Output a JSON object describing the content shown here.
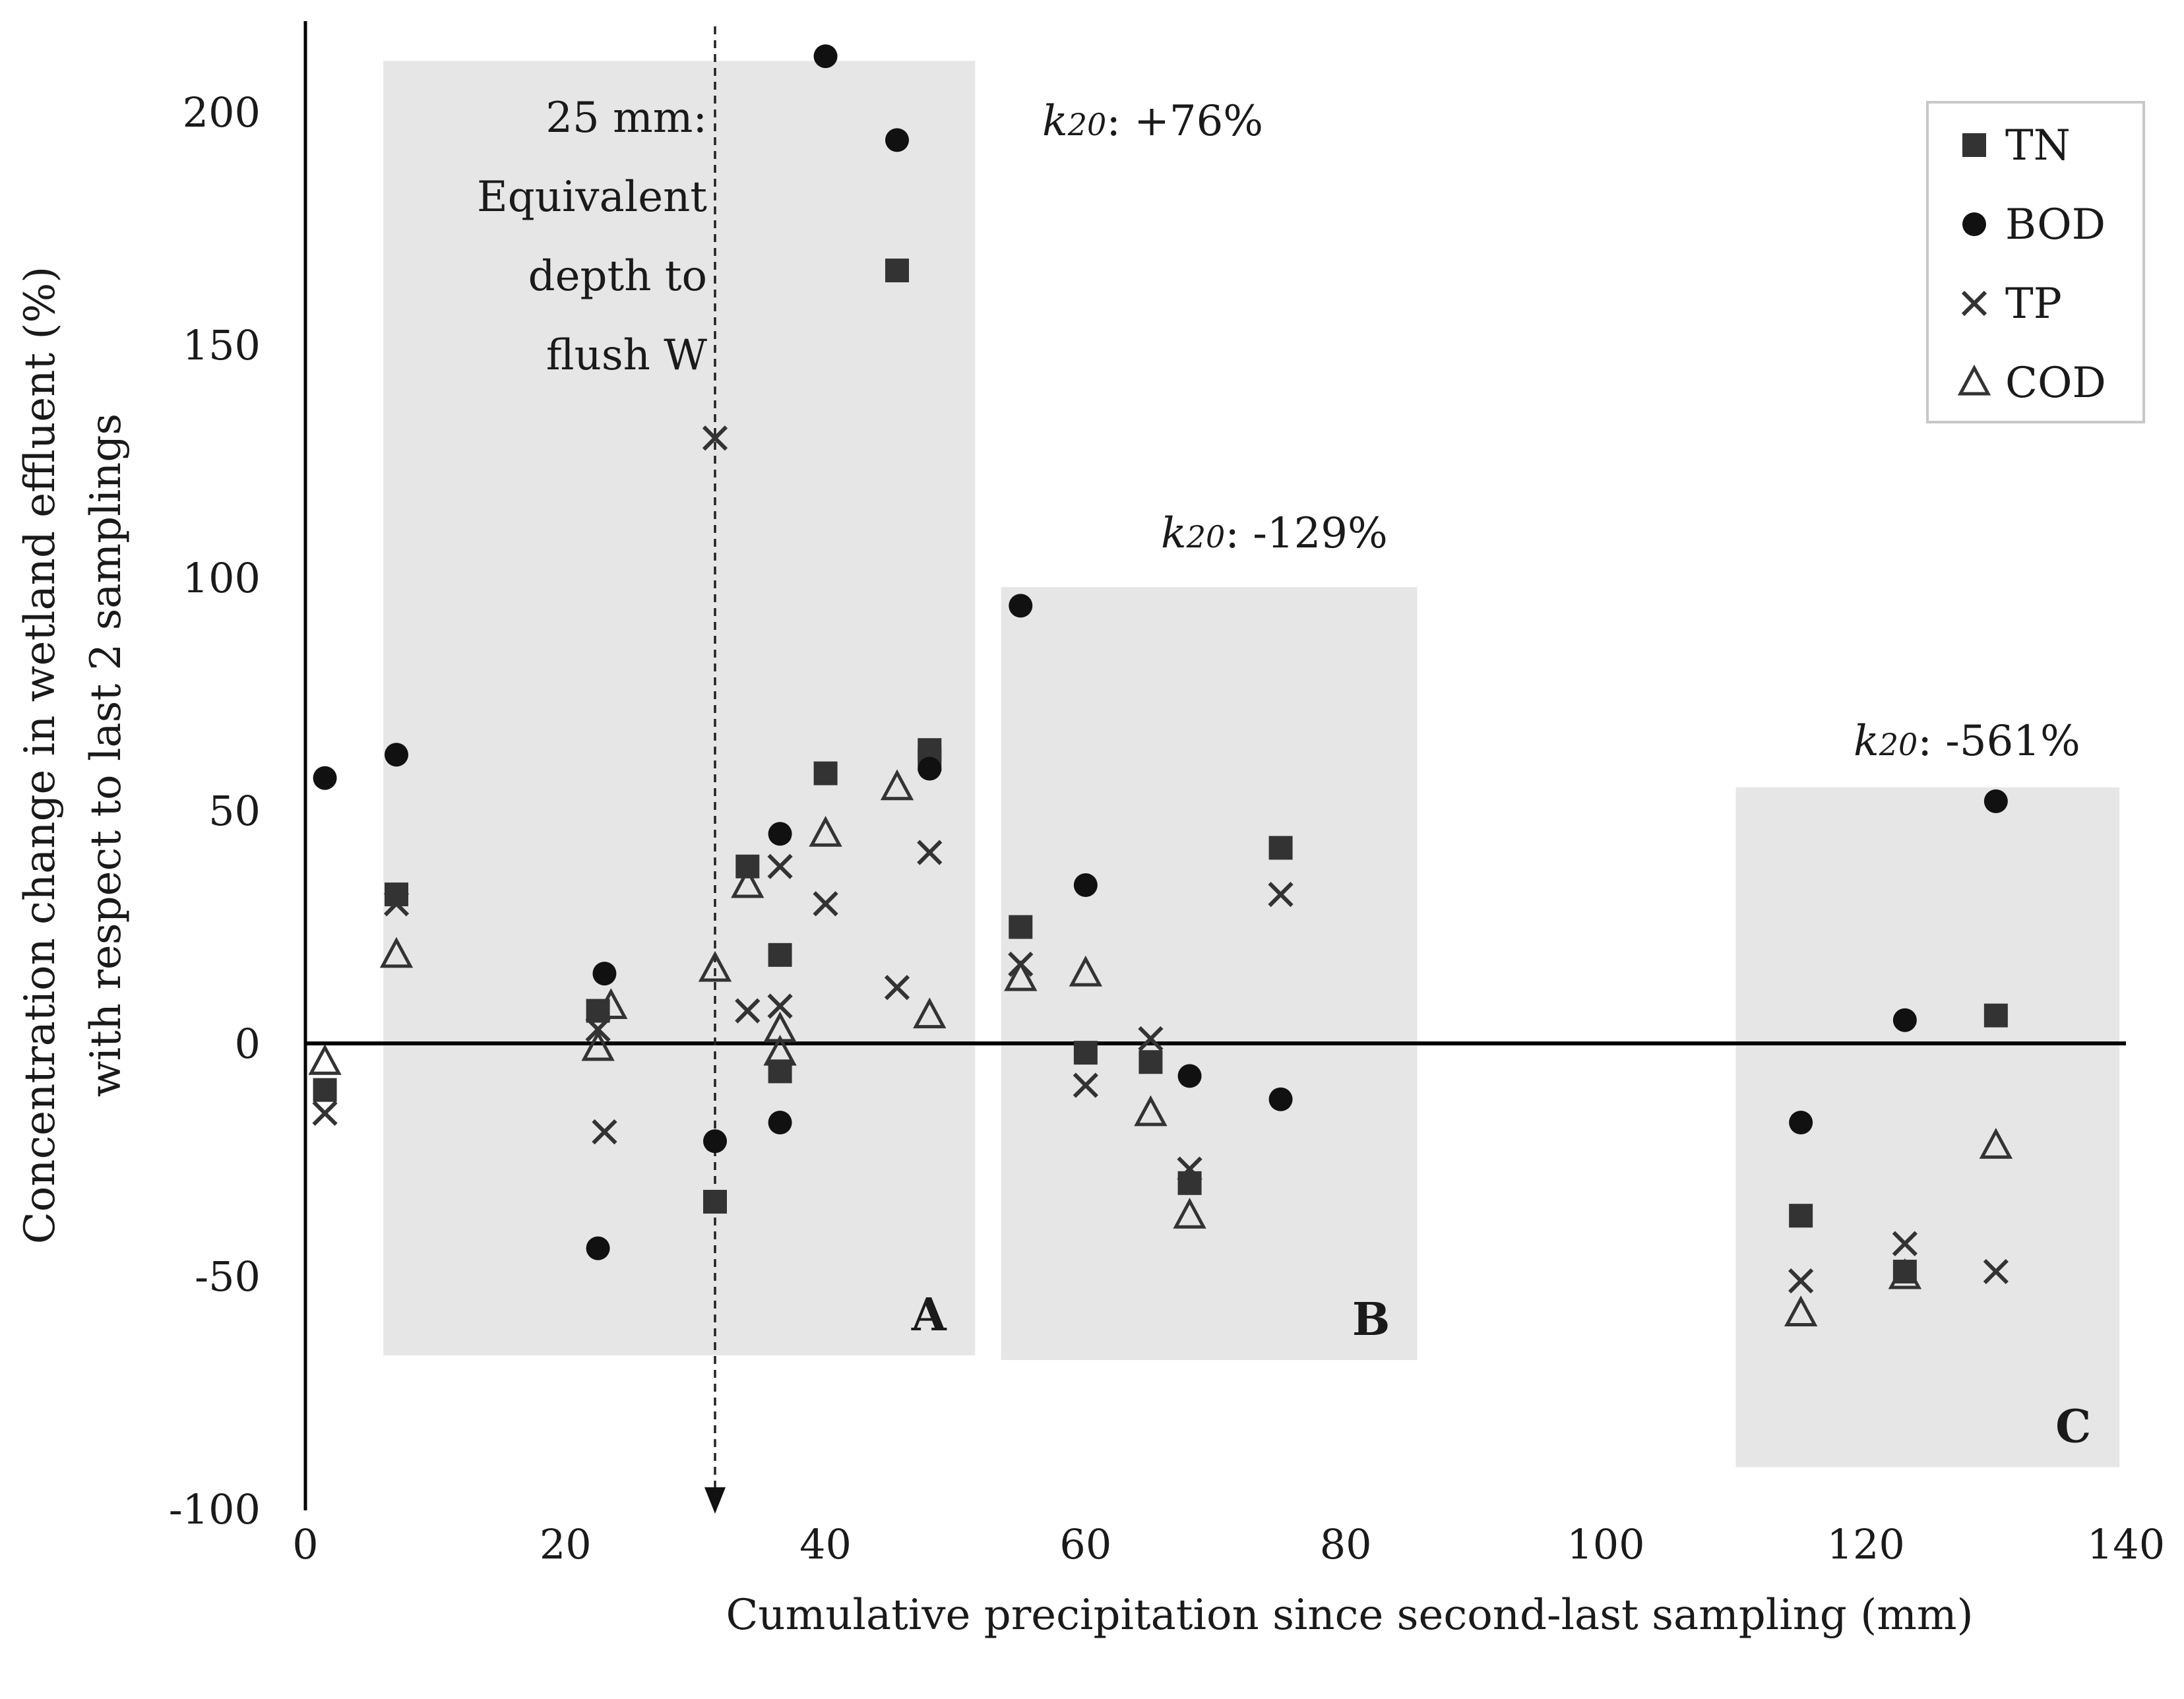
{
  "chart_data": {
    "type": "scatter",
    "title": "",
    "xlabel": "Cumulative precipitation since second-last sampling (mm)",
    "ylabel": [
      "Concentration change in wetland effluent (%)",
      "with respect to last 2 samplings"
    ],
    "xlim": [
      0,
      140
    ],
    "ylim": [
      -100,
      220
    ],
    "x_ticks": [
      "0",
      "20",
      "40",
      "60",
      "80",
      "100",
      "120",
      "140"
    ],
    "y_ticks": [
      "-100",
      "-50",
      "0",
      "50",
      "100",
      "150",
      "200"
    ],
    "x_tick_values": [
      0,
      20,
      40,
      60,
      80,
      100,
      120,
      140
    ],
    "y_tick_values": [
      -100,
      -50,
      0,
      50,
      100,
      150,
      200
    ],
    "legend": {
      "position": "top-right",
      "entries": [
        "TN",
        "BOD",
        "TP",
        "COD"
      ]
    },
    "regions": [
      {
        "label": "A",
        "x_range": [
          6,
          51.5
        ],
        "y_range": [
          -67,
          211
        ],
        "k20_prefix": "k",
        "k20_sub": "20",
        "k20_value": ": +76%"
      },
      {
        "label": "B",
        "x_range": [
          53.5,
          85.5
        ],
        "y_range": [
          -68,
          98
        ],
        "k20_prefix": "k",
        "k20_sub": "20",
        "k20_value": ": -129%"
      },
      {
        "label": "C",
        "x_range": [
          110,
          139.5
        ],
        "y_range": [
          -91,
          55
        ],
        "k20_prefix": "k",
        "k20_sub": "20",
        "k20_value": ": -561%"
      }
    ],
    "reference_line": {
      "x": 31.5,
      "y_range": [
        -100,
        219
      ],
      "label": [
        "25 mm:",
        "Equivalent",
        "depth to",
        "flush W"
      ]
    },
    "series": [
      {
        "name": "TN",
        "marker": "square",
        "points": [
          [
            1.5,
            -10
          ],
          [
            7,
            32
          ],
          [
            22.5,
            7
          ],
          [
            31.5,
            -34
          ],
          [
            34,
            38
          ],
          [
            36.5,
            19
          ],
          [
            36.5,
            -6
          ],
          [
            40,
            58
          ],
          [
            45.5,
            166
          ],
          [
            48,
            63
          ],
          [
            48,
            61
          ],
          [
            55,
            25
          ],
          [
            60,
            -2
          ],
          [
            65,
            -4
          ],
          [
            68,
            -30
          ],
          [
            75,
            42
          ],
          [
            115,
            -37
          ],
          [
            123,
            -49
          ],
          [
            130,
            6
          ]
        ]
      },
      {
        "name": "BOD",
        "marker": "circle",
        "points": [
          [
            1.5,
            57
          ],
          [
            7,
            62
          ],
          [
            23,
            15
          ],
          [
            22.5,
            -44
          ],
          [
            31.5,
            -21
          ],
          [
            36.5,
            45
          ],
          [
            36.5,
            -17
          ],
          [
            40,
            212
          ],
          [
            45.5,
            194
          ],
          [
            48,
            59
          ],
          [
            55,
            94
          ],
          [
            60,
            34
          ],
          [
            68,
            -7
          ],
          [
            75,
            -12
          ],
          [
            115,
            -17
          ],
          [
            123,
            5
          ],
          [
            130,
            52
          ]
        ]
      },
      {
        "name": "TP",
        "marker": "x",
        "points": [
          [
            1.5,
            -15
          ],
          [
            7,
            30
          ],
          [
            22.5,
            3
          ],
          [
            23,
            -19
          ],
          [
            31.5,
            130
          ],
          [
            34,
            7
          ],
          [
            36.5,
            38
          ],
          [
            36.5,
            8
          ],
          [
            40,
            30
          ],
          [
            45.5,
            12
          ],
          [
            48,
            41
          ],
          [
            55,
            17
          ],
          [
            60,
            -9
          ],
          [
            65,
            1
          ],
          [
            68,
            -27
          ],
          [
            75,
            32
          ],
          [
            115,
            -51
          ],
          [
            123,
            -43
          ],
          [
            130,
            -49
          ]
        ]
      },
      {
        "name": "COD",
        "marker": "triangle",
        "points": [
          [
            1.5,
            -4
          ],
          [
            7,
            19
          ],
          [
            22.5,
            -1
          ],
          [
            23.5,
            8
          ],
          [
            31.5,
            16
          ],
          [
            34,
            34
          ],
          [
            36.5,
            3
          ],
          [
            36.5,
            -2
          ],
          [
            40,
            45
          ],
          [
            45.5,
            55
          ],
          [
            48,
            6
          ],
          [
            55,
            14
          ],
          [
            60,
            15
          ],
          [
            65,
            -15
          ],
          [
            68,
            -37
          ],
          [
            115,
            -58
          ],
          [
            123,
            -50
          ],
          [
            130,
            -22
          ]
        ]
      }
    ]
  }
}
